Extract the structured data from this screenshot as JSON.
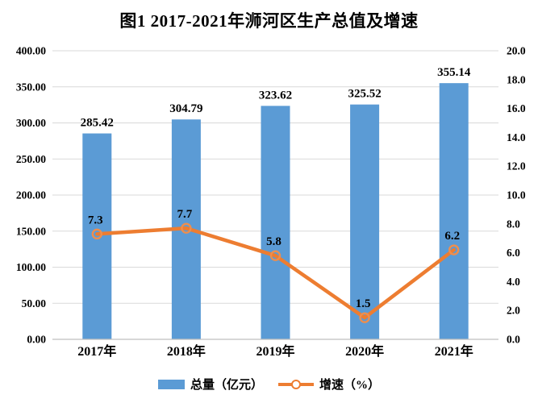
{
  "title": "图1 2017-2021年浉河区生产总值及增速",
  "legend": {
    "bar_label": "总量（亿元）",
    "line_label": "增速（%）"
  },
  "colors": {
    "bar": "#5B9BD5",
    "line": "#ED7D31",
    "marker_ring": "#EF8E4C",
    "grid": "#D9D9D9",
    "axis_line": "#BFBFBF",
    "text": "#000000"
  },
  "chart_data": {
    "type": "bar+line combo",
    "title": "图1 2017-2021年浉河区生产总值及增速",
    "categories": [
      "2017年",
      "2018年",
      "2019年",
      "2020年",
      "2021年"
    ],
    "series": [
      {
        "name": "总量（亿元）",
        "type": "bar",
        "axis": "left",
        "values": [
          285.42,
          304.79,
          323.62,
          325.52,
          355.14
        ],
        "labels": [
          "285.42",
          "304.79",
          "323.62",
          "325.52",
          "355.14"
        ]
      },
      {
        "name": "增速（%）",
        "type": "line",
        "axis": "right",
        "values": [
          7.3,
          7.7,
          5.8,
          1.5,
          6.2
        ],
        "labels": [
          "7.3",
          "7.7",
          "5.8",
          "1.5",
          "6.2"
        ]
      }
    ],
    "left_axis": {
      "min": 0,
      "max": 400,
      "step": 50,
      "tick_labels": [
        "0.00",
        "50.00",
        "100.00",
        "150.00",
        "200.00",
        "250.00",
        "300.00",
        "350.00",
        "400.00"
      ]
    },
    "right_axis": {
      "min": 0,
      "max": 20,
      "step": 2,
      "tick_labels": [
        "0.0",
        "2.0",
        "4.0",
        "6.0",
        "8.0",
        "10.0",
        "12.0",
        "14.0",
        "16.0",
        "18.0",
        "20.0"
      ]
    },
    "grid": "horizontal gridlines aligned to left axis ticks",
    "legend_position": "bottom"
  }
}
